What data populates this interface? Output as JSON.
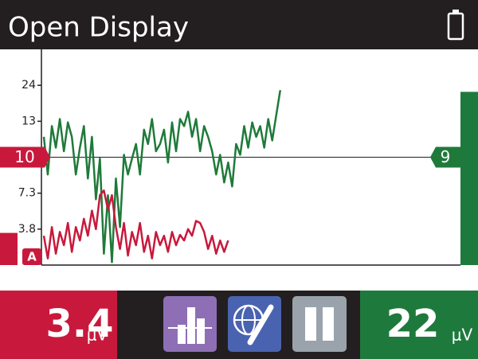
{
  "header": {
    "title": "Open Display"
  },
  "chart_data": {
    "type": "line",
    "ylim": [
      0,
      33
    ],
    "yticks": [
      3.8,
      7.3,
      13,
      24
    ],
    "left_marker": 10,
    "right_marker": 9,
    "channel_label": "A",
    "series": [
      {
        "color": "#1f7a3a",
        "values": [
          11.7,
          8.7,
          12.6,
          10.8,
          13.7,
          10.5,
          12.9,
          11.7,
          8.7,
          10.8,
          12.6,
          8.4,
          11.7,
          6.7,
          9.9,
          1.2,
          7.1,
          0.3,
          8.4,
          4.0,
          10.2,
          8.7,
          9.9,
          11.1,
          8.7,
          12.3,
          11.1,
          13.7,
          10.5,
          11.1,
          12.3,
          9.6,
          12.9,
          10.5,
          13.7,
          12.6,
          15.9,
          11.7,
          13.7,
          10.5,
          12.6,
          11.7,
          10.5,
          8.7,
          10.2,
          8.1,
          9.6,
          7.8,
          11.1,
          10.2,
          12.6,
          10.8,
          12.9,
          11.7,
          12.6,
          10.8,
          13.7,
          11.4,
          14.8,
          22.5
        ]
      },
      {
        "color": "#c8193c",
        "values": [
          3.1,
          0.7,
          4.0,
          1.2,
          3.5,
          2.1,
          4.4,
          1.4,
          4.0,
          2.6,
          4.8,
          3.1,
          5.6,
          3.8,
          7.1,
          7.5,
          5.7,
          7.1,
          4.0,
          1.7,
          4.4,
          1.0,
          3.5,
          2.1,
          4.4,
          1.4,
          3.1,
          0.7,
          3.5,
          2.1,
          3.1,
          1.4,
          3.5,
          2.1,
          3.2,
          2.6,
          3.8,
          3.1,
          4.6,
          4.4,
          3.5,
          1.7,
          3.1,
          1.2,
          2.6,
          1.4,
          2.6
        ]
      }
    ]
  },
  "readouts": [
    {
      "value": 3.4,
      "unit": "μV",
      "color": "#c8193c"
    },
    {
      "value": 22,
      "unit": "μV",
      "color": "#1e7a3c"
    }
  ]
}
